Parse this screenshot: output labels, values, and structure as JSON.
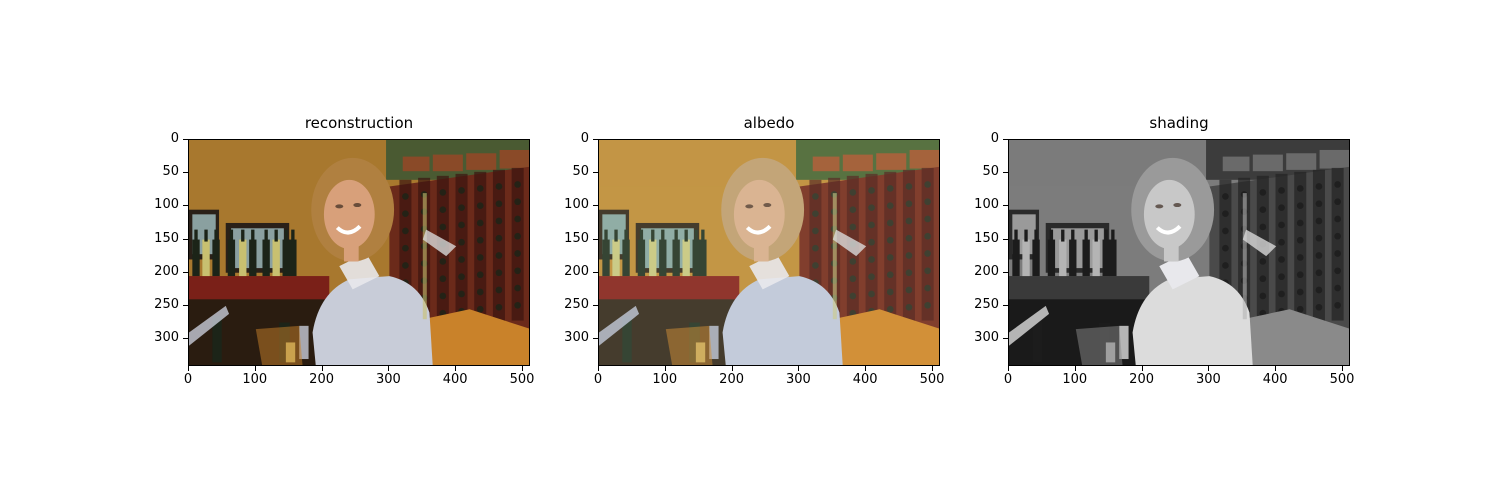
{
  "panels": [
    {
      "title": "reconstruction",
      "mode": "color"
    },
    {
      "title": "albedo",
      "mode": "flat"
    },
    {
      "title": "shading",
      "mode": "gray"
    }
  ],
  "y_ticks": [
    "0",
    "50",
    "100",
    "150",
    "200",
    "250",
    "300"
  ],
  "x_ticks": [
    "0",
    "100",
    "200",
    "300",
    "400",
    "500"
  ]
}
